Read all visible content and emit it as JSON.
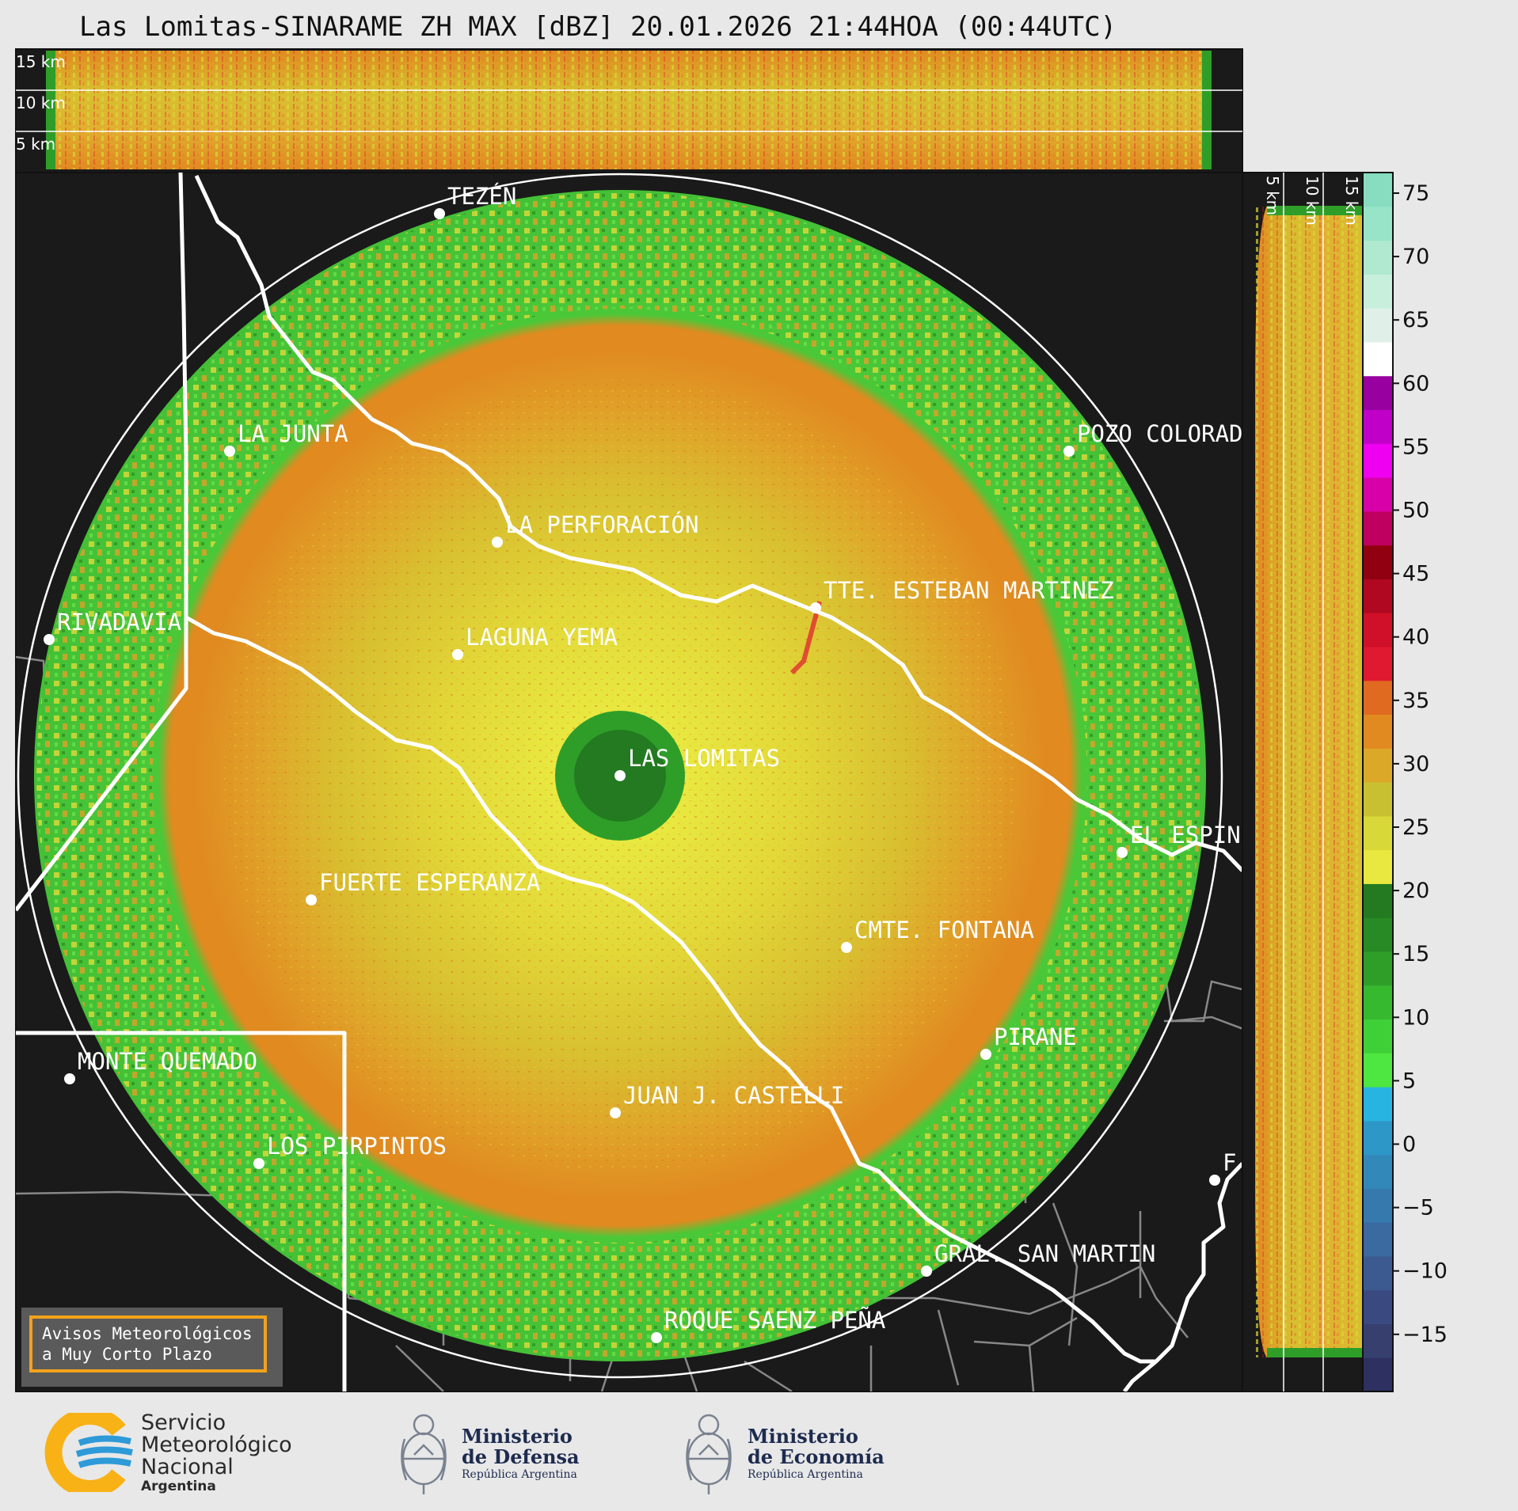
{
  "title": "Las Lomitas-SINARAME ZH MAX [dBZ] 20.01.2026 21:44HOA (00:44UTC)",
  "colors": {
    "background": "#1a1a1a",
    "page": "#e8e8e8",
    "accent": "#f2a21b"
  },
  "top_panel": {
    "labels": [
      "15 km",
      "10 km",
      "5 km"
    ]
  },
  "side_panel": {
    "labels": [
      "5 km",
      "10 km",
      "15 km"
    ]
  },
  "places": [
    {
      "name": "TEZÉN"
    },
    {
      "name": "LA JUNTA"
    },
    {
      "name": "POZO COLORAD"
    },
    {
      "name": "LA PERFORACIÓN"
    },
    {
      "name": "TTE. ESTEBAN MARTINEZ"
    },
    {
      "name": "RIVADAVIA"
    },
    {
      "name": "LAGUNA YEMA"
    },
    {
      "name": "LAS LOMITAS"
    },
    {
      "name": "EL ESPIN"
    },
    {
      "name": "FUERTE ESPERANZA"
    },
    {
      "name": "CMTE. FONTANA"
    },
    {
      "name": "PIRANE"
    },
    {
      "name": "MONTE QUEMADO"
    },
    {
      "name": "JUAN J. CASTELLI"
    },
    {
      "name": "LOS PIRPINTOS"
    },
    {
      "name": "GRAL. SAN MARTIN"
    },
    {
      "name": "ROQUE SAENZ PEÑA"
    },
    {
      "name": "F"
    }
  ],
  "colorbar": {
    "ticks": [
      "75",
      "70",
      "65",
      "60",
      "55",
      "50",
      "45",
      "40",
      "35",
      "30",
      "25",
      "20",
      "15",
      "10",
      "5",
      "0",
      "−5",
      "−10",
      "−15"
    ],
    "stops": [
      "#2d3060",
      "#363f6e",
      "#3a4a80",
      "#3c5a8f",
      "#3a6aa0",
      "#3679ad",
      "#3288b8",
      "#2d98c8",
      "#28b4e0",
      "#4ee640",
      "#3fd038",
      "#36b82f",
      "#2f9e29",
      "#288a24",
      "#237a20",
      "#e8e840",
      "#d8d838",
      "#c8c030",
      "#dca828",
      "#e08a20",
      "#e06a20",
      "#e01830",
      "#d01028",
      "#b00820",
      "#900010",
      "#c00060",
      "#d800a8",
      "#f000f0",
      "#c000c8",
      "#9800a0",
      "#ffffff",
      "#e0f0e8",
      "#c8eedc",
      "#b0e8d0",
      "#98e4c8",
      "#88dcc0"
    ]
  },
  "warning": {
    "line1": "Avisos Meteorológicos",
    "line2": "a Muy Corto Plazo"
  },
  "footer": {
    "smn": {
      "line1": "Servicio",
      "line2": "Meteorológico",
      "line3": "Nacional",
      "line4": "Argentina"
    },
    "defensa": {
      "line1": "Ministerio",
      "line2": "de Defensa",
      "line3": "República Argentina"
    },
    "economia": {
      "line1": "Ministerio",
      "line2": "de Economía",
      "line3": "República Argentina"
    }
  }
}
